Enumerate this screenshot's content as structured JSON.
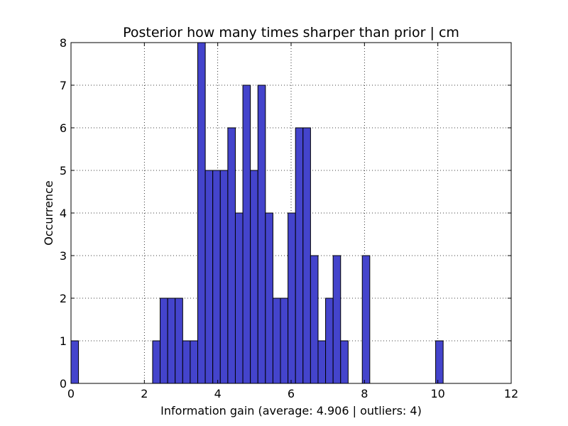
{
  "chart_data": {
    "type": "bar",
    "title": "Posterior how many times sharper than prior | cm",
    "xlabel": "Information gain (average: 4.906 | outliers: 4)",
    "ylabel": "Occurrence",
    "xlim": [
      0,
      12
    ],
    "ylim": [
      0,
      8
    ],
    "xticks": [
      "0",
      "2",
      "4",
      "6",
      "8",
      "10",
      "12"
    ],
    "yticks": [
      "0",
      "1",
      "2",
      "3",
      "4",
      "5",
      "6",
      "7",
      "8"
    ],
    "grid": true,
    "bar_color": "#4444cc",
    "bins": [
      {
        "x0": 0.0,
        "x1": 0.205,
        "count": 1
      },
      {
        "x0": 2.225,
        "x1": 2.43,
        "count": 1
      },
      {
        "x0": 2.43,
        "x1": 2.635,
        "count": 2
      },
      {
        "x0": 2.635,
        "x1": 2.84,
        "count": 2
      },
      {
        "x0": 2.84,
        "x1": 3.045,
        "count": 2
      },
      {
        "x0": 3.045,
        "x1": 3.25,
        "count": 1
      },
      {
        "x0": 3.25,
        "x1": 3.455,
        "count": 1
      },
      {
        "x0": 3.455,
        "x1": 3.66,
        "count": 8
      },
      {
        "x0": 3.66,
        "x1": 3.865,
        "count": 5
      },
      {
        "x0": 3.865,
        "x1": 4.07,
        "count": 5
      },
      {
        "x0": 4.07,
        "x1": 4.275,
        "count": 5
      },
      {
        "x0": 4.275,
        "x1": 4.48,
        "count": 6
      },
      {
        "x0": 4.48,
        "x1": 4.685,
        "count": 4
      },
      {
        "x0": 4.685,
        "x1": 4.89,
        "count": 7
      },
      {
        "x0": 4.89,
        "x1": 5.095,
        "count": 5
      },
      {
        "x0": 5.095,
        "x1": 5.3,
        "count": 7
      },
      {
        "x0": 5.3,
        "x1": 5.505,
        "count": 4
      },
      {
        "x0": 5.505,
        "x1": 5.71,
        "count": 2
      },
      {
        "x0": 5.71,
        "x1": 5.915,
        "count": 2
      },
      {
        "x0": 5.915,
        "x1": 6.12,
        "count": 4
      },
      {
        "x0": 6.12,
        "x1": 6.325,
        "count": 6
      },
      {
        "x0": 6.325,
        "x1": 6.53,
        "count": 6
      },
      {
        "x0": 6.53,
        "x1": 6.735,
        "count": 3
      },
      {
        "x0": 6.735,
        "x1": 6.94,
        "count": 1
      },
      {
        "x0": 6.94,
        "x1": 7.145,
        "count": 2
      },
      {
        "x0": 7.145,
        "x1": 7.35,
        "count": 3
      },
      {
        "x0": 7.35,
        "x1": 7.555,
        "count": 1
      },
      {
        "x0": 7.94,
        "x1": 8.145,
        "count": 3
      },
      {
        "x0": 9.94,
        "x1": 10.145,
        "count": 1
      }
    ]
  }
}
